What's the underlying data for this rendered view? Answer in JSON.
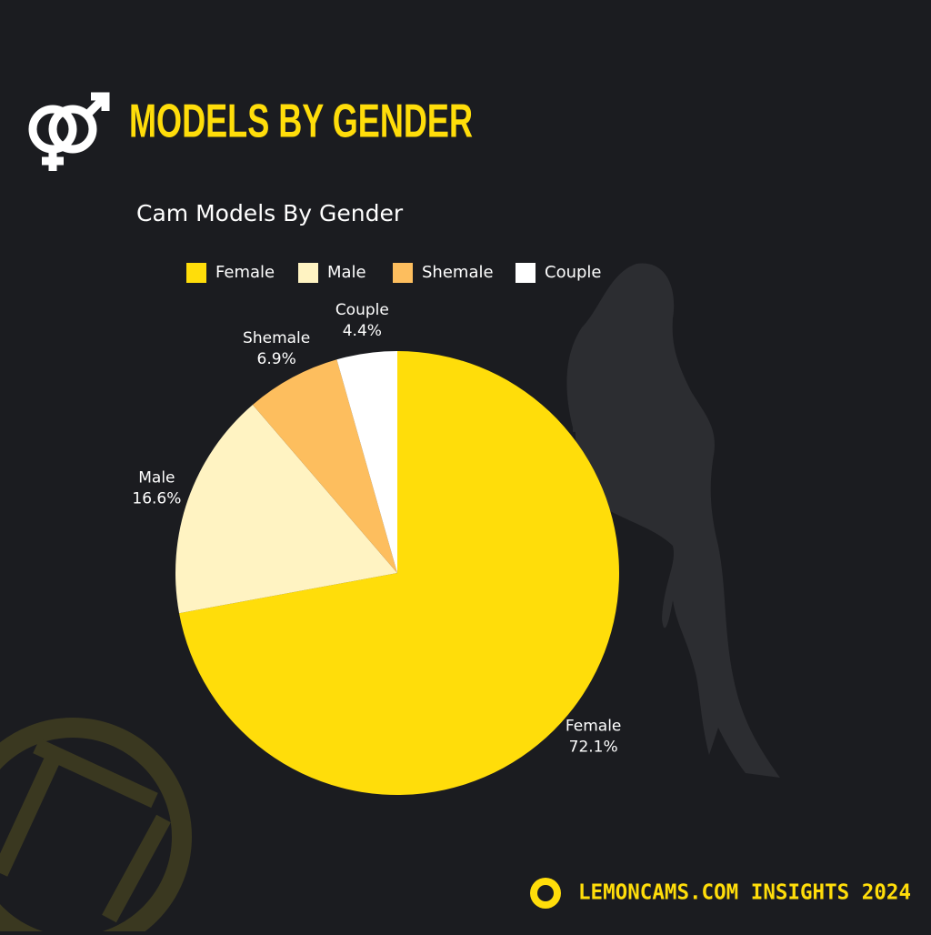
{
  "header": {
    "title": "MODELS BY GENDER"
  },
  "footer": {
    "text": "LEMONCAMS.COM INSIGHTS 2024"
  },
  "chart_data": {
    "type": "pie",
    "title": "Cam Models By Gender",
    "categories": [
      "Female",
      "Male",
      "Shemale",
      "Couple"
    ],
    "values": [
      72.1,
      16.6,
      6.9,
      4.4
    ],
    "value_labels": [
      "72.1%",
      "16.6%",
      "6.9%",
      "4.4%"
    ],
    "colors": [
      "#ffdd0a",
      "#fff3c2",
      "#fdbe5e",
      "#ffffff"
    ],
    "legend": "top"
  }
}
